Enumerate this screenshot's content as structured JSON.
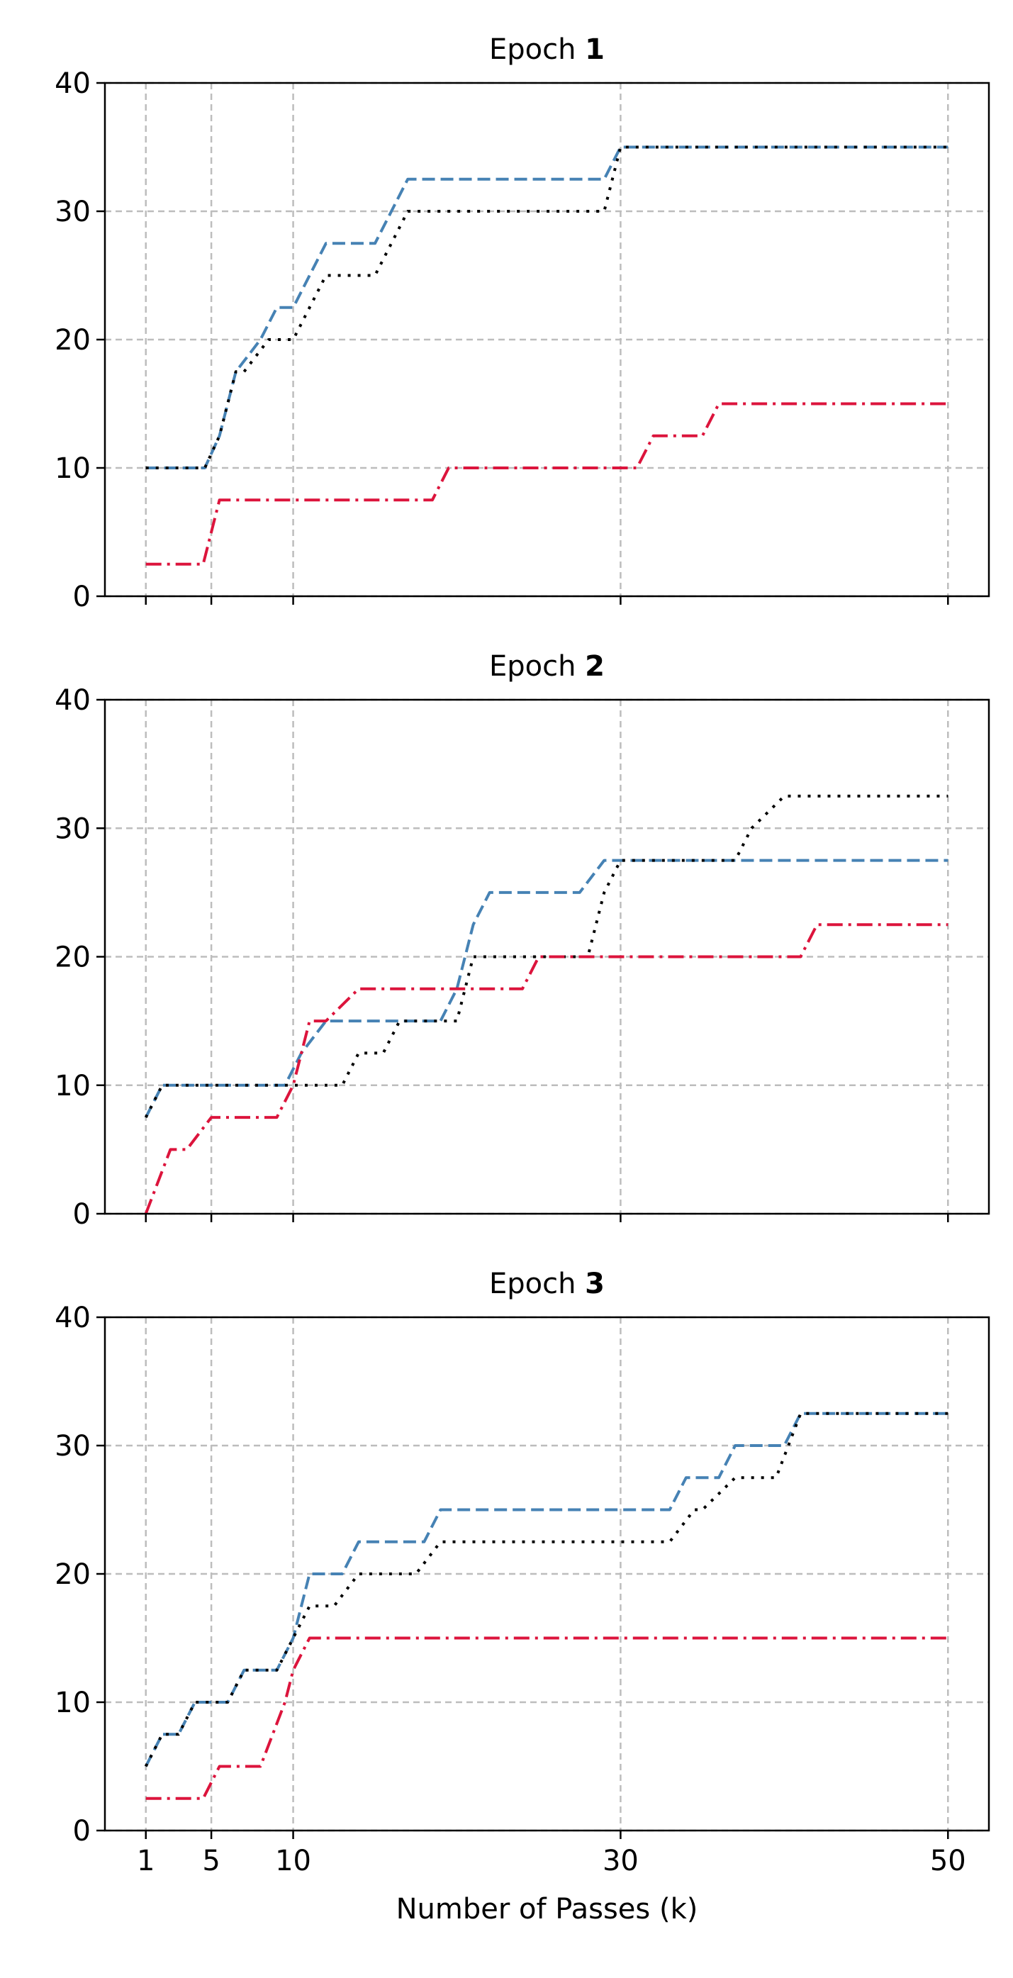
{
  "chart_data": [
    {
      "type": "line",
      "title_prefix": "Epoch",
      "title_bold": "1",
      "xlabel": "",
      "ylabel": "",
      "xlim": [
        -1.5,
        52.5
      ],
      "ylim": [
        0,
        40
      ],
      "xticks": [
        1,
        5,
        10,
        30,
        50
      ],
      "yticks": [
        0,
        10,
        20,
        30,
        40
      ],
      "grid": true,
      "series": [
        {
          "color": "#4682b4",
          "dash": "dashed",
          "x": [
            1,
            4.6,
            5.5,
            6.5,
            8,
            9,
            10,
            12,
            15,
            17,
            29,
            30,
            50
          ],
          "y": [
            10,
            10,
            12.5,
            17.5,
            20,
            22.5,
            22.5,
            27.5,
            27.5,
            32.5,
            32.5,
            35,
            35
          ]
        },
        {
          "color": "#000000",
          "dash": "dotted",
          "x": [
            1,
            4.6,
            5.5,
            6.5,
            7,
            8.5,
            10,
            12,
            15,
            17,
            29,
            30,
            50
          ],
          "y": [
            10,
            10,
            12.5,
            17.5,
            17.5,
            20,
            20,
            25,
            25,
            30,
            30,
            35,
            35
          ]
        },
        {
          "color": "#dc143c",
          "dash": "dashdot",
          "x": [
            1,
            4.5,
            5.5,
            18.5,
            19.5,
            31,
            32,
            35,
            36,
            50
          ],
          "y": [
            2.5,
            2.5,
            7.5,
            7.5,
            10,
            10,
            12.5,
            12.5,
            15,
            15
          ]
        }
      ]
    },
    {
      "type": "line",
      "title_prefix": "Epoch",
      "title_bold": "2",
      "xlabel": "",
      "ylabel": "",
      "xlim": [
        -1.5,
        52.5
      ],
      "ylim": [
        0,
        40
      ],
      "xticks": [
        1,
        5,
        10,
        30,
        50
      ],
      "yticks": [
        0,
        10,
        20,
        30,
        40
      ],
      "grid": true,
      "series": [
        {
          "color": "#4682b4",
          "dash": "dashed",
          "x": [
            1,
            2,
            9.5,
            10.5,
            12,
            19,
            20,
            21,
            22,
            27.5,
            29,
            30,
            50
          ],
          "y": [
            7.5,
            10,
            10,
            12.5,
            15,
            15,
            17.5,
            22.5,
            25,
            25,
            27.5,
            27.5,
            27.5
          ]
        },
        {
          "color": "#000000",
          "dash": "dotted",
          "x": [
            1,
            2,
            13,
            14,
            15.5,
            16.5,
            20,
            21,
            28,
            29,
            30,
            37,
            38,
            40,
            50
          ],
          "y": [
            7.5,
            10,
            10,
            12.5,
            12.5,
            15,
            15,
            20,
            20,
            25,
            27.5,
            27.5,
            30,
            32.5,
            32.5
          ]
        },
        {
          "color": "#dc143c",
          "dash": "dashdot",
          "x": [
            1,
            2.5,
            3.5,
            5,
            9,
            10,
            11,
            12,
            14,
            21,
            24,
            25,
            41,
            42,
            50
          ],
          "y": [
            0,
            5,
            5,
            7.5,
            7.5,
            10,
            15,
            15,
            17.5,
            17.5,
            17.5,
            20,
            20,
            22.5,
            22.5
          ]
        }
      ]
    },
    {
      "type": "line",
      "title_prefix": "Epoch",
      "title_bold": "3",
      "xlabel": "Number of Passes (k)",
      "ylabel": "",
      "xlim": [
        -1.5,
        52.5
      ],
      "ylim": [
        0,
        40
      ],
      "xticks": [
        1,
        5,
        10,
        30,
        50
      ],
      "yticks": [
        0,
        10,
        20,
        30,
        40
      ],
      "grid": true,
      "series": [
        {
          "color": "#4682b4",
          "dash": "dashed",
          "x": [
            1,
            2,
            3,
            4,
            6,
            7,
            9,
            10,
            11,
            13,
            14,
            18,
            19,
            33,
            34,
            36,
            37,
            40,
            41,
            50
          ],
          "y": [
            5,
            7.5,
            7.5,
            10,
            10,
            12.5,
            12.5,
            15,
            20,
            20,
            22.5,
            22.5,
            25,
            25,
            27.5,
            27.5,
            30,
            30,
            32.5,
            32.5
          ]
        },
        {
          "color": "#000000",
          "dash": "dotted",
          "x": [
            1,
            2,
            3,
            4,
            6,
            7,
            9,
            10,
            11,
            12.5,
            14,
            17.5,
            19,
            33,
            34.5,
            35,
            37,
            39.5,
            41,
            50
          ],
          "y": [
            5,
            7.5,
            7.5,
            10,
            10,
            12.5,
            12.5,
            15,
            17.5,
            17.5,
            20,
            20,
            22.5,
            22.5,
            25,
            25,
            27.5,
            27.5,
            32.5,
            32.5
          ]
        },
        {
          "color": "#dc143c",
          "dash": "dashdot",
          "x": [
            1,
            4.5,
            5.5,
            8,
            9.5,
            10,
            11,
            50
          ],
          "y": [
            2.5,
            2.5,
            5,
            5,
            10,
            12.5,
            15,
            15
          ]
        }
      ]
    }
  ]
}
